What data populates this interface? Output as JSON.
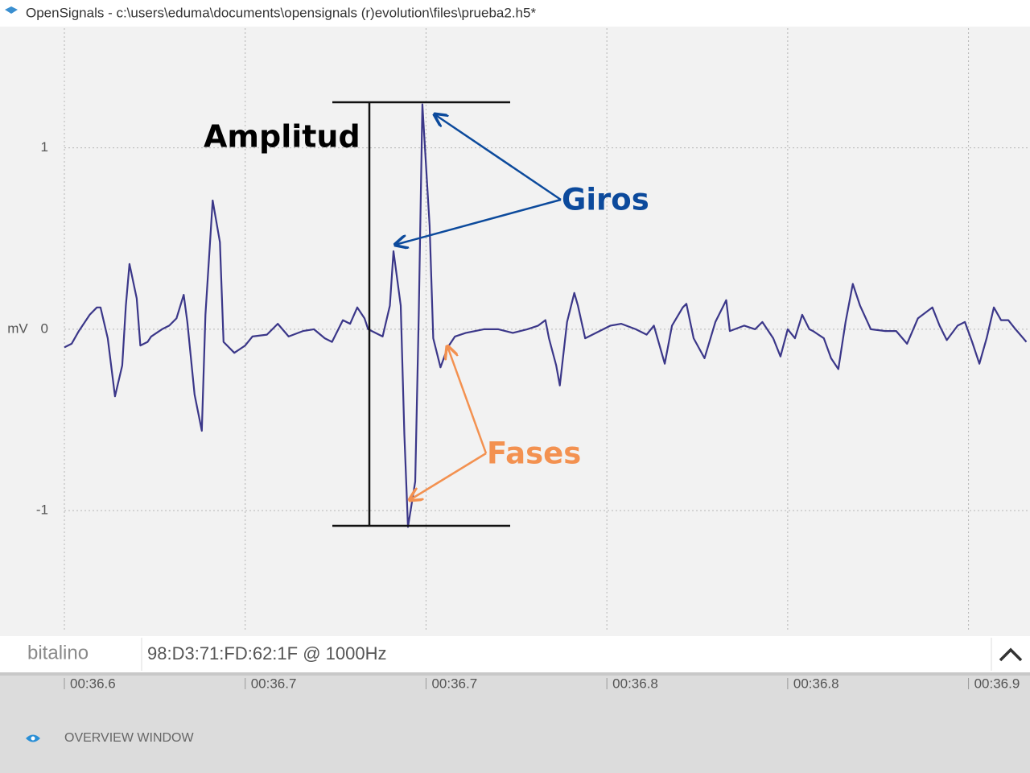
{
  "window": {
    "title": "OpenSignals - c:\\users\\eduma\\documents\\opensignals (r)evolution\\files\\prueba2.h5*"
  },
  "chart_data": {
    "type": "line",
    "y_label": "mV",
    "annotations": [
      "Amplitud",
      "Giros",
      "Fases"
    ],
    "x": [
      36.6,
      36.602,
      36.604,
      36.607,
      36.609,
      36.61,
      36.612,
      36.614,
      36.616,
      36.617,
      36.618,
      36.62,
      36.621,
      36.623,
      36.624,
      36.627,
      36.629,
      36.631,
      36.633,
      36.634,
      36.636,
      36.638,
      36.639,
      36.641,
      36.643,
      36.644,
      36.647,
      36.65,
      36.652,
      36.656,
      36.659,
      36.662,
      36.666,
      36.669,
      36.672,
      36.674,
      36.677,
      36.679,
      36.681,
      36.683,
      36.684,
      36.688,
      36.69,
      36.691,
      36.693,
      36.694,
      36.695,
      36.697,
      36.698,
      36.699,
      36.701,
      36.702,
      36.704,
      36.706,
      36.708,
      36.711,
      36.716,
      36.72,
      36.724,
      36.728,
      36.731,
      36.733,
      36.734,
      36.736,
      36.737,
      36.739,
      36.741,
      36.742,
      36.744,
      36.748,
      36.751,
      36.754,
      36.758,
      36.761,
      36.763,
      36.766,
      36.768,
      36.771,
      36.772,
      36.774,
      36.777,
      36.78,
      36.783,
      36.784,
      36.788,
      36.791,
      36.793,
      36.796,
      36.798,
      36.8,
      36.802,
      36.804,
      36.806,
      36.807,
      36.81,
      36.812,
      36.814,
      36.816,
      36.818,
      36.82,
      36.823,
      36.827,
      36.83,
      36.833,
      36.836,
      36.84,
      36.842,
      36.844,
      36.847,
      36.849,
      36.851,
      36.853,
      36.855,
      36.857,
      36.859,
      36.861,
      36.863,
      36.866
    ],
    "series": [
      {
        "color": "#3b3789",
        "values": [
          -0.1,
          -0.08,
          -0.01,
          0.08,
          0.12,
          0.12,
          -0.05,
          -0.37,
          -0.2,
          0.13,
          0.36,
          0.17,
          -0.09,
          -0.07,
          -0.04,
          0,
          0.02,
          0.06,
          0.19,
          0.04,
          -0.36,
          -0.56,
          0.08,
          0.71,
          0.48,
          -0.07,
          -0.13,
          -0.09,
          -0.04,
          -0.03,
          0.03,
          -0.04,
          -0.01,
          0,
          -0.05,
          -0.07,
          0.05,
          0.03,
          0.12,
          0.06,
          0,
          -0.04,
          0.13,
          0.43,
          0.13,
          -0.58,
          -1.09,
          -0.84,
          0.08,
          1.24,
          0.57,
          -0.05,
          -0.21,
          -0.1,
          -0.04,
          -0.02,
          0,
          0,
          -0.02,
          0,
          0.02,
          0.05,
          -0.05,
          -0.2,
          -0.31,
          0.04,
          0.2,
          0.13,
          -0.05,
          -0.01,
          0.02,
          0.03,
          0,
          -0.03,
          0.02,
          -0.19,
          0.02,
          0.12,
          0.14,
          -0.05,
          -0.16,
          0.04,
          0.16,
          -0.01,
          0.02,
          0,
          0.04,
          -0.05,
          -0.15,
          0,
          -0.05,
          0.08,
          0,
          -0.01,
          -0.05,
          -0.16,
          -0.22,
          0.04,
          0.25,
          0.13,
          0,
          -0.01,
          -0.01,
          -0.08,
          0.06,
          0.12,
          0.02,
          -0.06,
          0.02,
          0.04,
          -0.07,
          -0.19,
          -0.05,
          0.12,
          0.05,
          0.05,
          0,
          -0.07
        ]
      }
    ],
    "xlim": [
      36.6,
      36.867
    ],
    "xticks": [
      {
        "value": 36.6,
        "label": "00:36.6"
      },
      {
        "value": 36.65,
        "label": "00:36.7"
      },
      {
        "value": 36.7,
        "label": "00:36.7"
      },
      {
        "value": 36.75,
        "label": "00:36.8"
      },
      {
        "value": 36.8,
        "label": "00:36.8"
      },
      {
        "value": 36.85,
        "label": "00:36.9"
      }
    ],
    "ylim": [
      -1.67,
      1.66
    ],
    "yticks": [
      -1,
      0,
      1
    ],
    "grid": true
  },
  "device_bar": {
    "logo": "bitalino",
    "device": "98:D3:71:FD:62:1F @ 1000Hz"
  },
  "overview": {
    "label": "OVERVIEW WINDOW"
  }
}
